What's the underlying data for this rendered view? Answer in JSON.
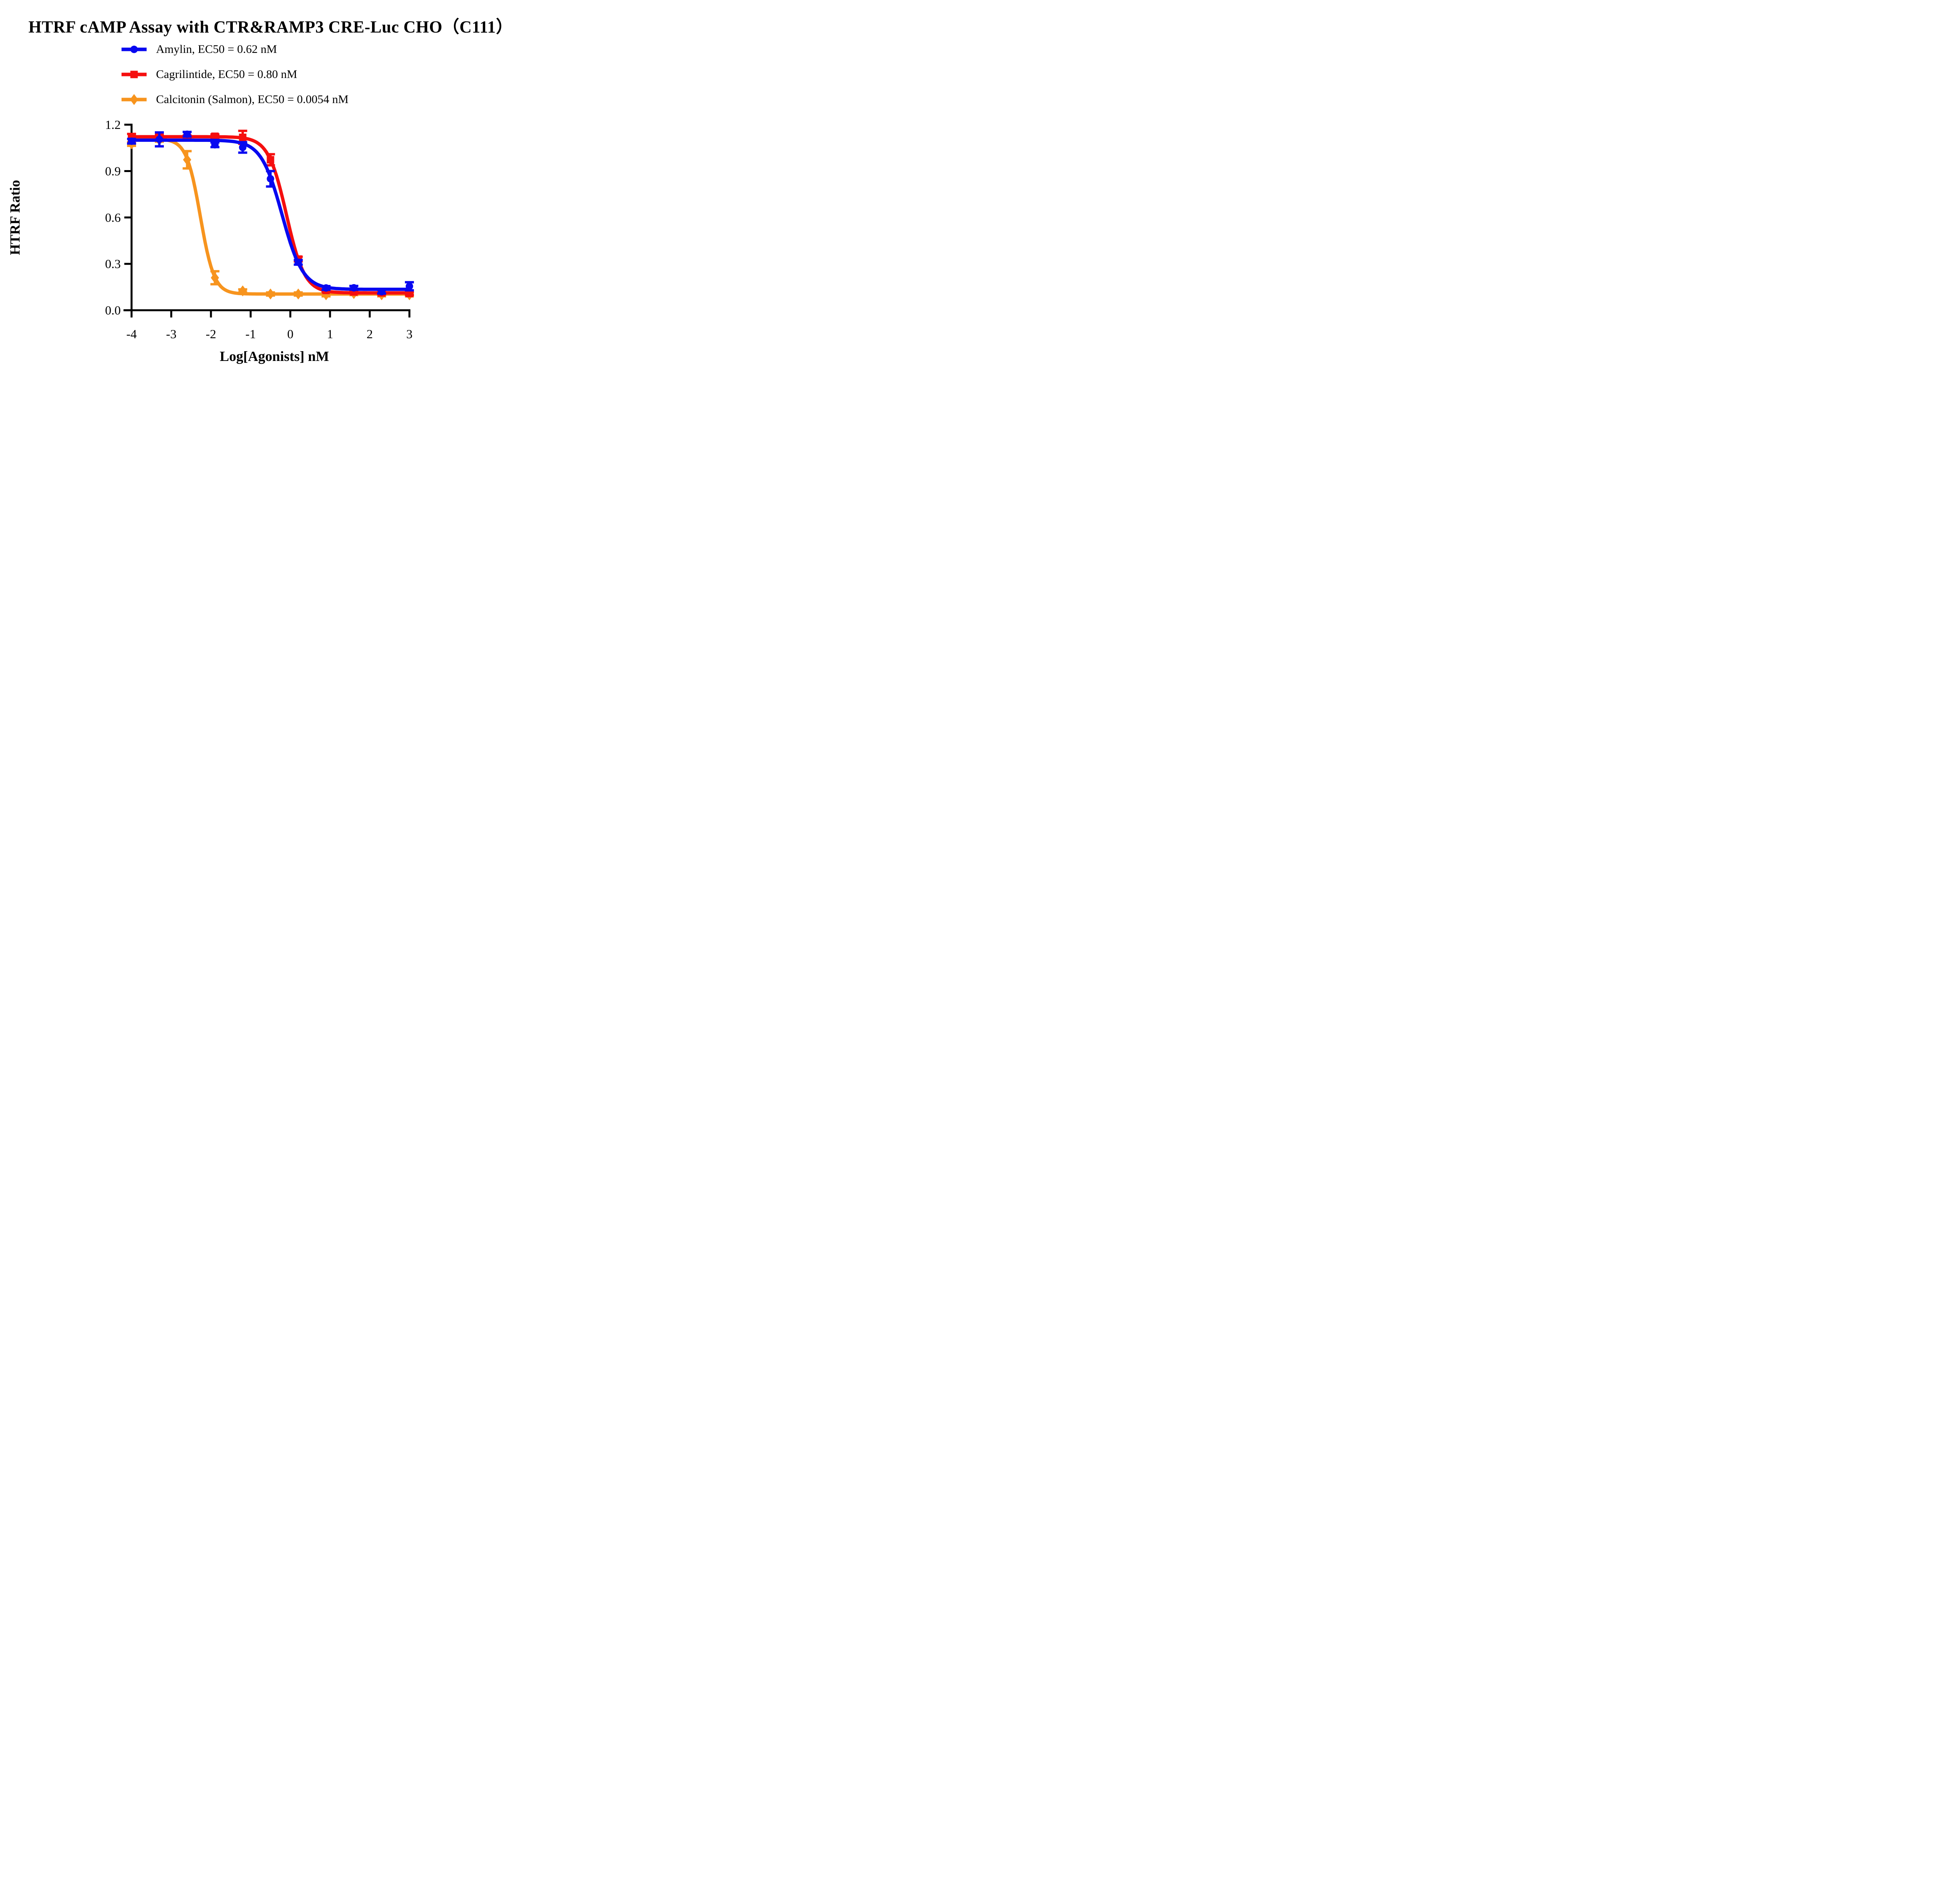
{
  "title": "HTRF cAMP Assay with CTR&RAMP3 CRE-Luc CHO（C111）",
  "colors": {
    "amylin_blue": "#0808f0",
    "cagrilintide_red": "#f50f0f",
    "calcitonin_orange": "#f7941e",
    "axis_black": "#000000",
    "background": "#ffffff"
  },
  "legend": {
    "items": [
      {
        "series": "amylin",
        "label": "Amylin, EC50 = 0.62 nM"
      },
      {
        "series": "cagrilintide",
        "label": "Cagrilintide, EC50 = 0.80 nM"
      },
      {
        "series": "calcitonin",
        "label": "Calcitonin (Salmon), EC50 = 0.0054 nM"
      }
    ]
  },
  "chart_data": {
    "type": "scatter",
    "title": "HTRF cAMP Assay with CTR&RAMP3 CRE-Luc CHO（C111）",
    "xlabel": "Log[Agonists] nM",
    "ylabel": "HTRF Ratio",
    "xlim": [
      -4,
      3
    ],
    "ylim": [
      0.0,
      1.2
    ],
    "xticks": [
      -4,
      -3,
      -2,
      -1,
      0,
      1,
      2,
      3
    ],
    "xtick_labels": [
      "-4",
      "-3",
      "-2",
      "-1",
      "0",
      "1",
      "2",
      "3"
    ],
    "yticks": [
      0.0,
      0.3,
      0.6,
      0.9,
      1.2
    ],
    "ytick_labels": [
      "0.0",
      "0.3",
      "0.6",
      "0.9",
      "1.2"
    ],
    "grid": false,
    "legend_position": "top-left",
    "x_values": [
      -4,
      -3.3,
      -2.6,
      -1.9,
      -1.2,
      -0.5,
      0.2,
      0.9,
      1.6,
      2.3,
      3
    ],
    "series": [
      {
        "id": "calcitonin",
        "name": "Calcitonin (Salmon)",
        "ec50_nM": "0.0054",
        "color": "#f7941e",
        "marker": "diamond",
        "values": [
          1.075,
          1.1,
          0.973,
          0.21,
          0.125,
          0.105,
          0.105,
          0.1,
          0.108,
          0.1,
          0.1
        ],
        "errors": [
          0.012,
          0.01,
          0.056,
          0.042,
          0.01,
          0.01,
          0.01,
          0.01,
          0.01,
          0.01,
          0.01
        ],
        "fit": {
          "top": 1.108,
          "bottom": 0.105,
          "logec50": -2.267,
          "hillslope": 2.5
        }
      },
      {
        "id": "cagrilintide",
        "name": "Cagrilintide",
        "ec50_nM": "0.80",
        "color": "#f50f0f",
        "marker": "square",
        "values": [
          1.11,
          1.12,
          1.118,
          1.125,
          1.118,
          0.973,
          0.331,
          0.128,
          0.118,
          0.112,
          0.108
        ],
        "errors": [
          0.03,
          0.015,
          0.012,
          0.012,
          0.042,
          0.036,
          0.015,
          0.01,
          0.01,
          0.01,
          0.01
        ],
        "fit": {
          "top": 1.122,
          "bottom": 0.112,
          "logec50": -0.097,
          "hillslope": 1.9
        }
      },
      {
        "id": "amylin",
        "name": "Amylin",
        "ec50_nM": "0.62",
        "color": "#0808f0",
        "marker": "circle",
        "values": [
          1.093,
          1.105,
          1.138,
          1.07,
          1.053,
          0.85,
          0.31,
          0.144,
          0.145,
          0.12,
          0.155
        ],
        "errors": [
          0.015,
          0.045,
          0.015,
          0.015,
          0.034,
          0.05,
          0.015,
          0.012,
          0.012,
          0.012,
          0.026
        ],
        "fit": {
          "top": 1.1,
          "bottom": 0.135,
          "logec50": -0.208,
          "hillslope": 1.65
        }
      }
    ]
  }
}
